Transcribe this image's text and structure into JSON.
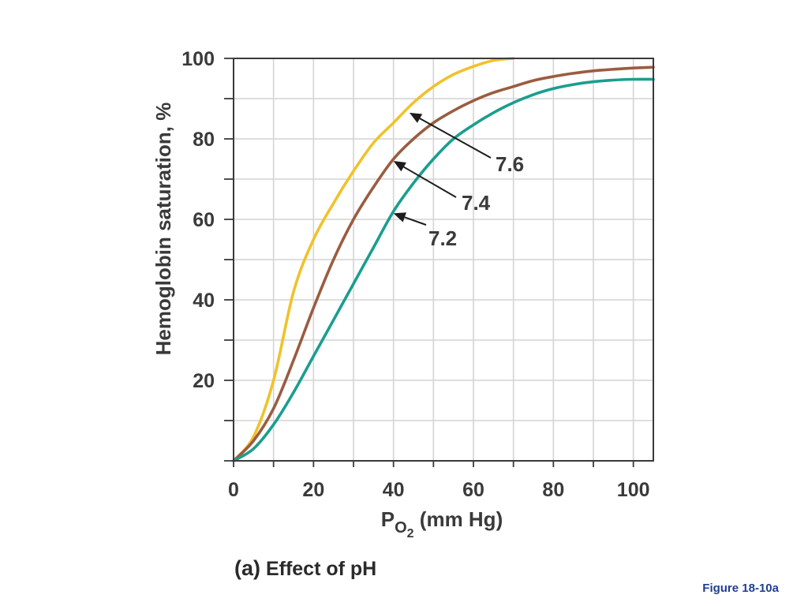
{
  "chart_data": {
    "type": "line",
    "ylabel": "Hemoglobin saturation, %",
    "xlabel_prefix": "P",
    "xlabel_subscript": "O",
    "xlabel_subsubscript": "2",
    "xlabel_suffix": " (mm Hg)",
    "xlim": [
      0,
      105
    ],
    "ylim": [
      0,
      100
    ],
    "x_ticks": [
      0,
      20,
      40,
      60,
      80,
      100
    ],
    "y_ticks": [
      20,
      40,
      60,
      80,
      100
    ],
    "grid": true,
    "series": [
      {
        "name": "7.6",
        "color": "#f0c22b",
        "points": [
          [
            0,
            0
          ],
          [
            5,
            6
          ],
          [
            10,
            20
          ],
          [
            15,
            42
          ],
          [
            20,
            55
          ],
          [
            25,
            64
          ],
          [
            30,
            72
          ],
          [
            35,
            79
          ],
          [
            40,
            84
          ],
          [
            45,
            89
          ],
          [
            50,
            93
          ],
          [
            55,
            96
          ],
          [
            60,
            98
          ],
          [
            65,
            99.5
          ],
          [
            70,
            100
          ]
        ]
      },
      {
        "name": "7.4",
        "color": "#9b5c40",
        "points": [
          [
            0,
            0
          ],
          [
            5,
            5
          ],
          [
            10,
            13
          ],
          [
            15,
            25
          ],
          [
            20,
            38
          ],
          [
            25,
            50
          ],
          [
            30,
            60
          ],
          [
            35,
            68
          ],
          [
            40,
            75
          ],
          [
            45,
            80
          ],
          [
            50,
            84
          ],
          [
            55,
            87
          ],
          [
            60,
            89.5
          ],
          [
            65,
            91.5
          ],
          [
            70,
            93
          ],
          [
            75,
            94.5
          ],
          [
            80,
            95.5
          ],
          [
            85,
            96.3
          ],
          [
            90,
            96.9
          ],
          [
            95,
            97.3
          ],
          [
            100,
            97.6
          ],
          [
            105,
            97.8
          ]
        ]
      },
      {
        "name": "7.2",
        "color": "#1a9e8e",
        "points": [
          [
            0,
            0
          ],
          [
            5,
            3
          ],
          [
            10,
            9
          ],
          [
            15,
            17
          ],
          [
            20,
            26
          ],
          [
            25,
            35
          ],
          [
            30,
            44
          ],
          [
            35,
            53
          ],
          [
            40,
            62
          ],
          [
            45,
            69
          ],
          [
            50,
            75
          ],
          [
            55,
            80
          ],
          [
            60,
            83.5
          ],
          [
            65,
            86.5
          ],
          [
            70,
            89
          ],
          [
            75,
            91
          ],
          [
            80,
            92.5
          ],
          [
            85,
            93.5
          ],
          [
            90,
            94.2
          ],
          [
            95,
            94.6
          ],
          [
            100,
            94.8
          ],
          [
            105,
            94.8
          ]
        ]
      }
    ],
    "annotations": [
      {
        "text": "7.6",
        "points_to": [
          44,
          86.5
        ]
      },
      {
        "text": "7.4",
        "points_to": [
          40,
          74.5
        ]
      },
      {
        "text": "7.2",
        "points_to": [
          40,
          61.5
        ]
      }
    ]
  },
  "caption": {
    "bold": "(a)",
    "text": " Effect of pH"
  },
  "figure_label": "Figure 18-10a"
}
